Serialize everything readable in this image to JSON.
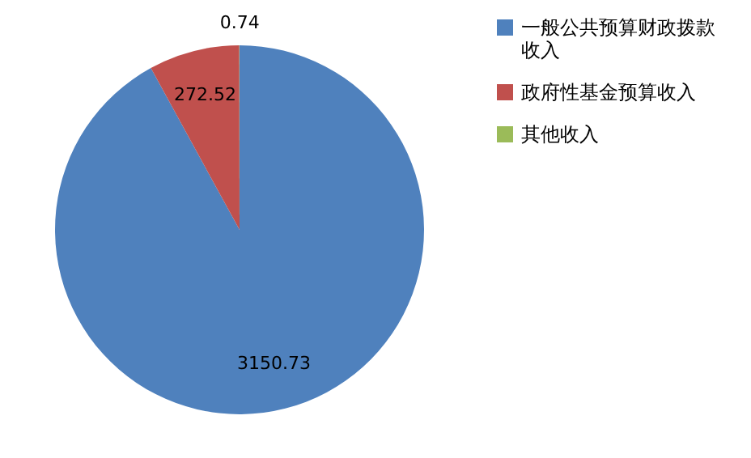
{
  "chart_data": {
    "type": "pie",
    "categories": [
      "一般公共预算财政拨款收入",
      "政府性基金预算收入",
      "其他收入"
    ],
    "values": [
      3150.73,
      272.52,
      0.74
    ],
    "colors": [
      "#4f81bd",
      "#c0504d",
      "#9bbb59"
    ],
    "data_labels": true,
    "legend": "right"
  }
}
